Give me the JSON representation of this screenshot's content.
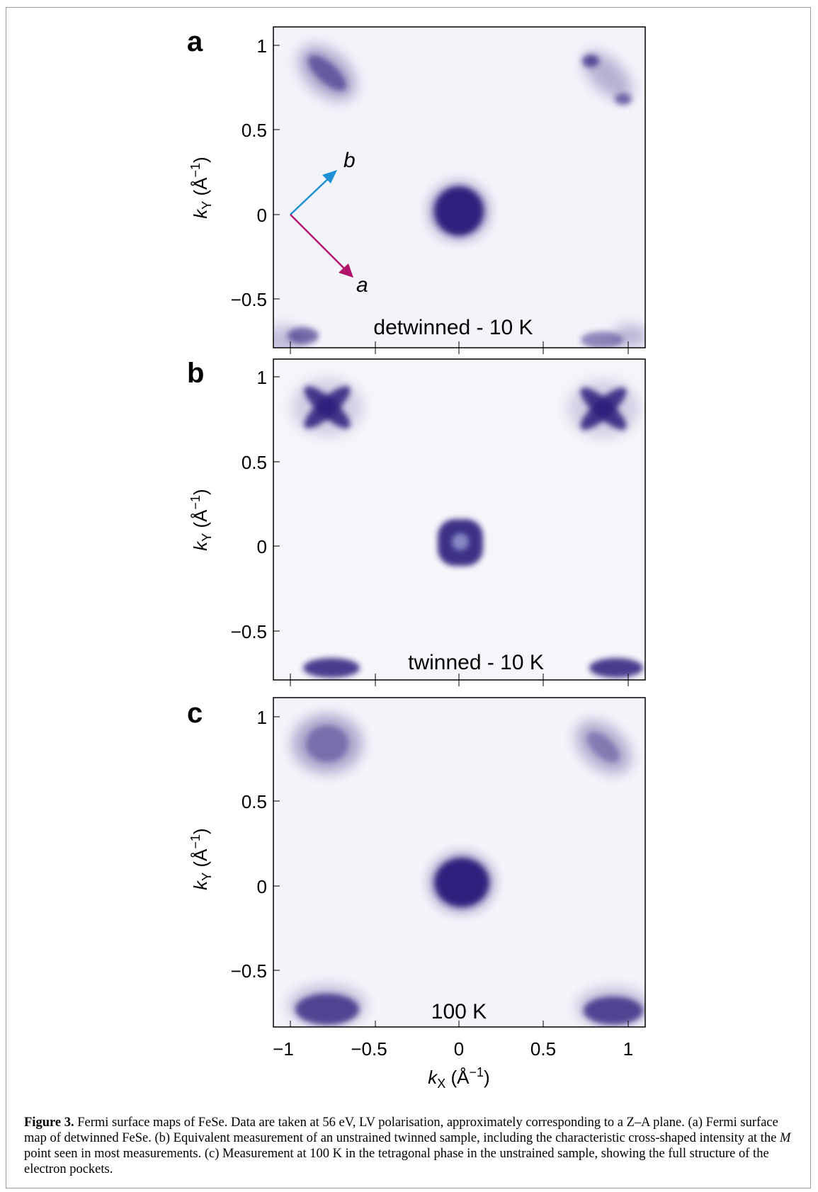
{
  "figure": {
    "panels": [
      {
        "id": "a",
        "label": "a",
        "annotation": "detwinned - 10 K",
        "ylabel": "k_Y (Å^-1)",
        "axis_b_label": "b",
        "axis_a_label": "a"
      },
      {
        "id": "b",
        "label": "b",
        "annotation": "twinned - 10 K",
        "ylabel": "k_Y (Å^-1)"
      },
      {
        "id": "c",
        "label": "c",
        "annotation": "100 K",
        "ylabel": "k_Y (Å^-1)"
      }
    ],
    "xlabel": "k_X (Å^-1)",
    "x_ticks": [
      "−1",
      "−0.5",
      "0",
      "0.5",
      "1"
    ],
    "y_ticks": [
      "1",
      "0.5",
      "0",
      "−0.5"
    ],
    "x_range": [
      -1.1,
      1.1
    ],
    "y_range": [
      -0.8,
      1.1
    ],
    "colors": {
      "intensity": "#2a1f7a",
      "arrow_b": "#1f8fd6",
      "arrow_a": "#b0136a"
    }
  },
  "caption": {
    "label": "Figure 3.",
    "text": " Fermi surface maps of FeSe. Data are taken at 56 eV, LV polarisation, approximately corresponding to a Z–A plane. (a) Fermi surface map of detwinned FeSe. (b) Equivalent measurement of an unstrained twinned sample, including the characteristic cross-shaped intensity at the ",
    "italic": "M",
    "text2": " point seen in most measurements. (c) Measurement at 100  K in the tetragonal phase in the unstrained sample, showing the full structure of the electron pockets."
  }
}
